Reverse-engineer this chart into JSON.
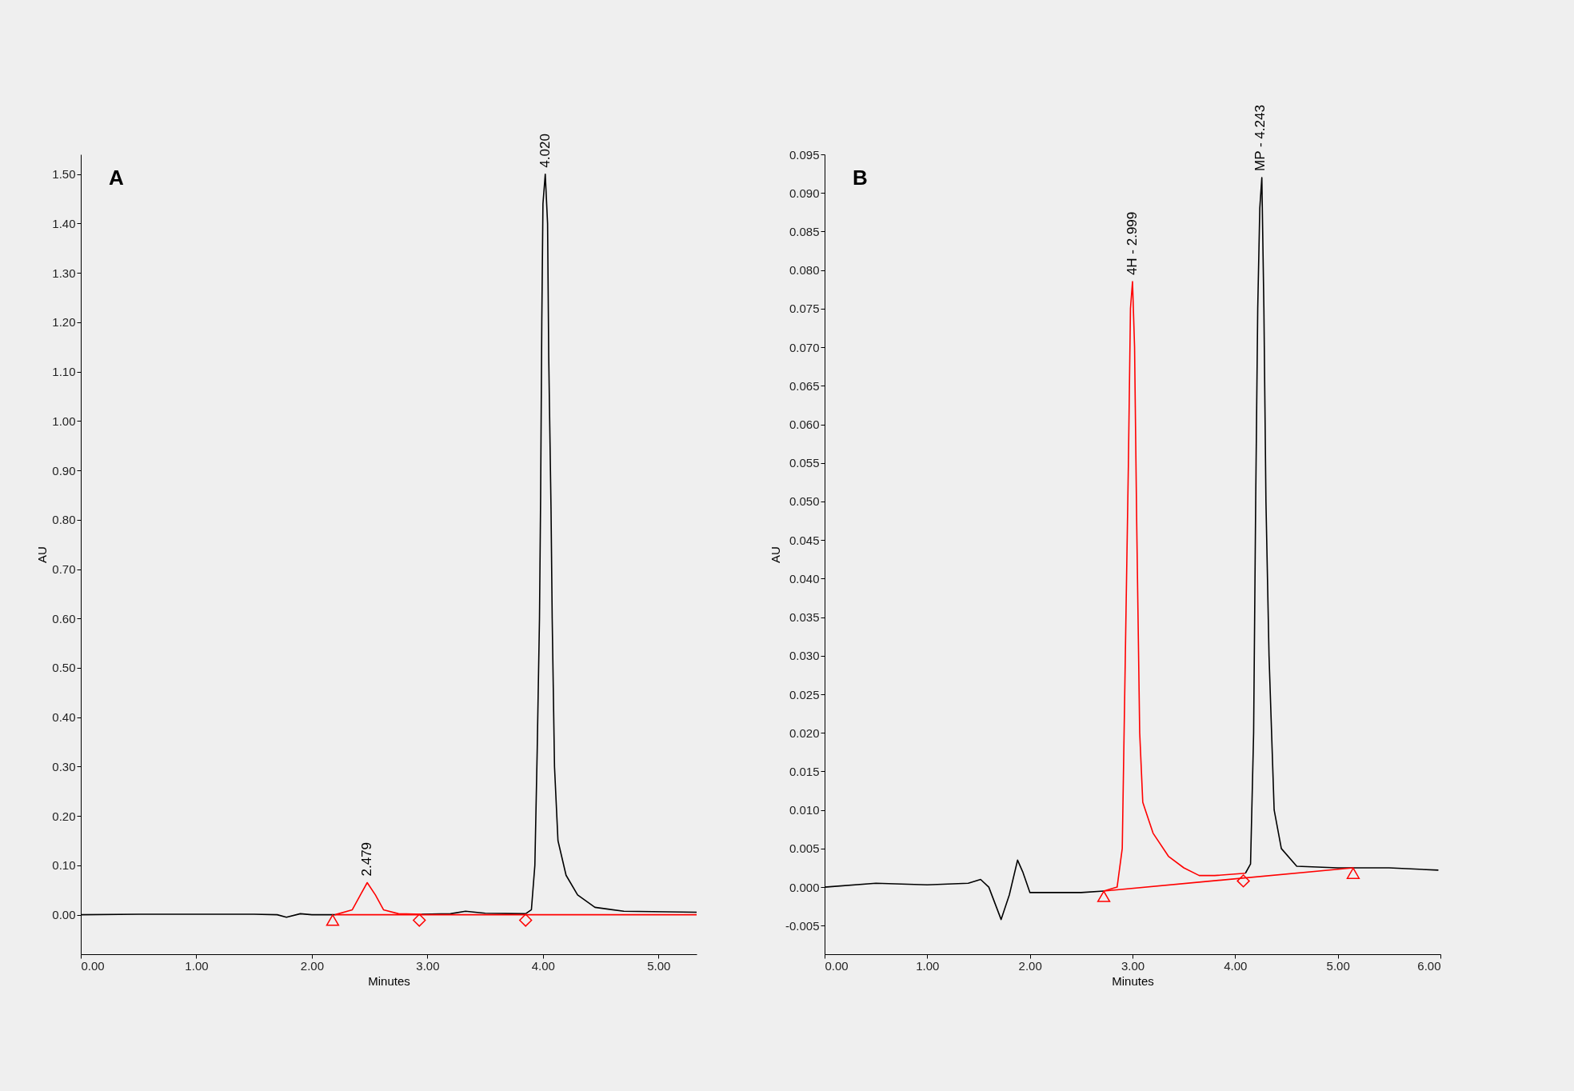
{
  "chart_data": [
    {
      "type": "line",
      "title": "A",
      "xlabel": "Minutes",
      "ylabel": "AU",
      "xlim": [
        0,
        5.33
      ],
      "ylim": [
        -0.08,
        1.54
      ],
      "grid": false,
      "xticks": [
        {
          "value": 0,
          "label": "0.00"
        },
        {
          "value": 1,
          "label": "1.00"
        },
        {
          "value": 2,
          "label": "2.00"
        },
        {
          "value": 3,
          "label": "3.00"
        },
        {
          "value": 4,
          "label": "4.00"
        },
        {
          "value": 5,
          "label": "5.00"
        }
      ],
      "yticks": [
        {
          "value": 0,
          "label": "0.00"
        },
        {
          "value": 0.1,
          "label": "0.10"
        },
        {
          "value": 0.2,
          "label": "0.20"
        },
        {
          "value": 0.3,
          "label": "0.30"
        },
        {
          "value": 0.4,
          "label": "0.40"
        },
        {
          "value": 0.5,
          "label": "0.50"
        },
        {
          "value": 0.6,
          "label": "0.60"
        },
        {
          "value": 0.7,
          "label": "0.70"
        },
        {
          "value": 0.8,
          "label": "0.80"
        },
        {
          "value": 0.9,
          "label": "0.90"
        },
        {
          "value": 1,
          "label": "1.00"
        },
        {
          "value": 1.1,
          "label": "1.10"
        },
        {
          "value": 1.2,
          "label": "1.20"
        },
        {
          "value": 1.3,
          "label": "1.30"
        },
        {
          "value": 1.4,
          "label": "1.40"
        },
        {
          "value": 1.5,
          "label": "1.50"
        }
      ],
      "series": [
        {
          "type": "line",
          "color": "#000000",
          "x": [
            0,
            0.5,
            1.0,
            1.5,
            1.7,
            1.78,
            1.9,
            2.0,
            2.2,
            2.35,
            2.42,
            2.479,
            2.55,
            2.62,
            2.75,
            2.95,
            3.2,
            3.33,
            3.5,
            3.85,
            3.9,
            3.93,
            3.95,
            3.97,
            3.98,
            3.99,
            4.0,
            4.02,
            4.04,
            4.05,
            4.07,
            4.08,
            4.1,
            4.13,
            4.2,
            4.3,
            4.45,
            4.7,
            5.33
          ],
          "values": [
            0,
            0.001,
            0.001,
            0.001,
            0,
            -0.005,
            0.002,
            0,
            0,
            null,
            null,
            null,
            null,
            null,
            null,
            0.001,
            0.002,
            0.007,
            0.003,
            0.002,
            0.01,
            0.1,
            0.33,
            0.6,
            0.85,
            1.2,
            1.44,
            1.5,
            1.4,
            1.13,
            0.82,
            0.6,
            0.3,
            0.15,
            0.08,
            0.04,
            0.015,
            0.007,
            0.005
          ]
        },
        {
          "type": "line",
          "color": "#ff0000",
          "x": [
            2.2,
            2.35,
            2.42,
            2.479,
            2.55,
            2.62,
            2.75,
            2.95
          ],
          "values": [
            0,
            0.01,
            0.04,
            0.065,
            0.04,
            0.01,
            0.002,
            0.001
          ]
        },
        {
          "type": "line",
          "color": "#ff0000",
          "x": [
            2.2,
            5.33
          ],
          "values": [
            0,
            0
          ]
        },
        {
          "type": "scatter",
          "marker": "triangle",
          "color": "#ff0000",
          "x": [
            2.18
          ],
          "values": [
            -0.011
          ]
        },
        {
          "type": "scatter",
          "marker": "diamond",
          "color": "#ff0000",
          "x": [
            2.93,
            3.85
          ],
          "values": [
            -0.011,
            -0.011
          ]
        }
      ],
      "annotations": [
        {
          "text": "2.479",
          "x": 2.479,
          "y": 0.065
        },
        {
          "text": "4.020",
          "x": 4.02,
          "y": 1.5
        }
      ]
    },
    {
      "type": "line",
      "title": "B",
      "xlabel": "Minutes",
      "ylabel": "AU",
      "xlim": [
        0,
        6.0
      ],
      "ylim": [
        -0.0087,
        0.095
      ],
      "grid": false,
      "xticks": [
        {
          "value": 0,
          "label": "0.00"
        },
        {
          "value": 1,
          "label": "1.00"
        },
        {
          "value": 2,
          "label": "2.00"
        },
        {
          "value": 3,
          "label": "3.00"
        },
        {
          "value": 4,
          "label": "4.00"
        },
        {
          "value": 5,
          "label": "5.00"
        },
        {
          "value": 6,
          "label": "6.00"
        }
      ],
      "yticks": [
        -0.005,
        {
          "value": 0,
          "label": "0.000"
        },
        0.005,
        {
          "value": 0.01,
          "label": "0.010"
        },
        0.015,
        {
          "value": 0.02,
          "label": "0.020"
        },
        0.025,
        {
          "value": 0.03,
          "label": "0.030"
        },
        0.035,
        {
          "value": 0.04,
          "label": "0.040"
        },
        0.045,
        {
          "value": 0.05,
          "label": "0.050"
        },
        0.055,
        {
          "value": 0.06,
          "label": "0.060"
        },
        0.065,
        {
          "value": 0.07,
          "label": "0.070"
        },
        0.075,
        {
          "value": 0.08,
          "label": "0.080"
        },
        0.085,
        {
          "value": 0.09,
          "label": "0.090"
        },
        0.095
      ],
      "series": [
        {
          "type": "line",
          "color": "#000000",
          "x": [
            0,
            0.5,
            1.0,
            1.4,
            1.52,
            1.6,
            1.72,
            1.8,
            1.88,
            1.93,
            2.0,
            2.5,
            2.72,
            2.85,
            2.9,
            2.93,
            2.96,
            2.98,
            3.0,
            3.02,
            3.04,
            3.07,
            3.1,
            3.2,
            3.35,
            3.5,
            3.65,
            3.8,
            4.1,
            4.15,
            4.18,
            4.2,
            4.22,
            4.24,
            4.26,
            4.28,
            4.3,
            4.33,
            4.38,
            4.45,
            4.6,
            5.0,
            5.5,
            5.98
          ],
          "values": [
            0,
            0.0005,
            0.0003,
            0.0005,
            0.001,
            0,
            -0.0042,
            -0.001,
            0.0035,
            0.002,
            -0.0007,
            -0.0007,
            -0.0005,
            null,
            null,
            null,
            null,
            null,
            null,
            null,
            null,
            null,
            null,
            null,
            null,
            null,
            null,
            null,
            0.0018,
            0.003,
            0.02,
            0.05,
            0.075,
            0.088,
            0.092,
            0.075,
            0.05,
            0.03,
            0.01,
            0.005,
            0.0027,
            0.0025,
            0.0025,
            0.0022
          ]
        },
        {
          "type": "line",
          "color": "#ff0000",
          "x": [
            2.72,
            2.85,
            2.9,
            2.93,
            2.96,
            2.98,
            3.0,
            3.02,
            3.04,
            3.07,
            3.1,
            3.2,
            3.35,
            3.5,
            3.65,
            3.8,
            4.1
          ],
          "values": [
            -0.0005,
            0,
            0.005,
            0.03,
            0.055,
            0.075,
            0.0785,
            0.07,
            0.048,
            0.02,
            0.011,
            0.007,
            0.004,
            0.0025,
            0.0015,
            0.0015,
            0.0018
          ]
        },
        {
          "type": "line",
          "color": "#ff0000",
          "x": [
            2.72,
            5.15
          ],
          "values": [
            -0.0005,
            0.0025
          ]
        },
        {
          "type": "scatter",
          "marker": "triangle",
          "color": "#ff0000",
          "x": [
            2.72,
            5.15
          ],
          "values": [
            -0.0012,
            0.0018
          ]
        },
        {
          "type": "scatter",
          "marker": "diamond",
          "color": "#ff0000",
          "x": [
            4.08
          ],
          "values": [
            0.0008
          ]
        }
      ],
      "annotations": [
        {
          "text": "4H - 2.999",
          "x": 2.999,
          "y": 0.0785
        },
        {
          "text": "MP - 4.243",
          "x": 4.243,
          "y": 0.092
        }
      ]
    }
  ]
}
